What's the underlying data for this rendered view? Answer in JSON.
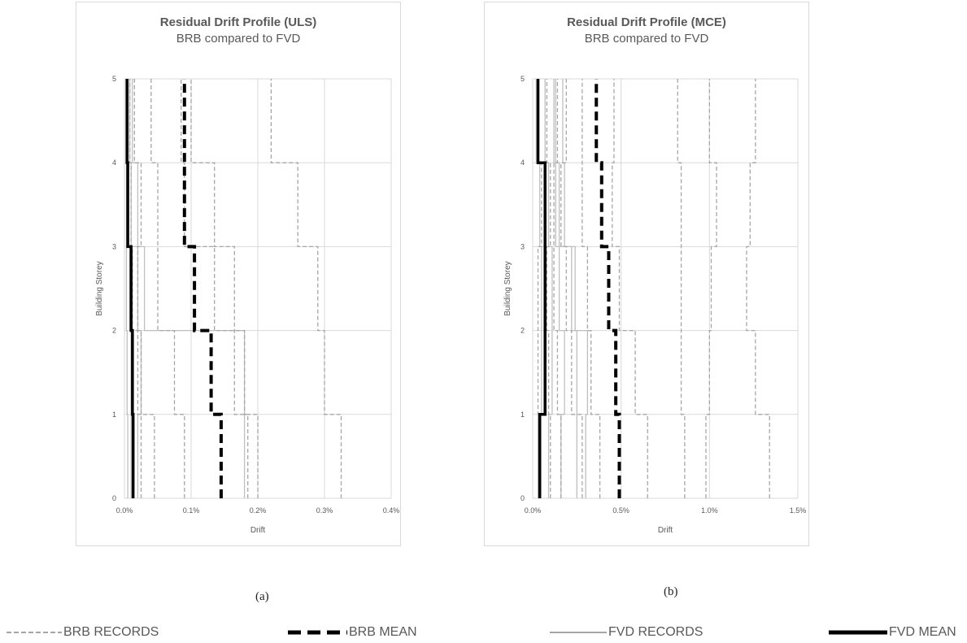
{
  "chart_data": [
    {
      "type": "line",
      "title": "Residual Drift Profile (ULS)",
      "subtitle": "BRB compared to FVD",
      "xlabel": "Drift",
      "ylabel": "Building Storey",
      "xlim": [
        0,
        0.4
      ],
      "ylim": [
        0,
        5
      ],
      "x_ticks": [
        "0.0%",
        "0.1%",
        "0.2%",
        "0.3%",
        "0.4%"
      ],
      "y_ticks": [
        "0",
        "1",
        "2",
        "3",
        "4",
        "5"
      ],
      "grid": true,
      "caption": "(a)",
      "storey_bounds": [
        0,
        1,
        2,
        3,
        4,
        5
      ],
      "series": [
        {
          "name": "BRB MEAN",
          "style": "brb-mean",
          "values": [
            0.145,
            0.13,
            0.105,
            0.09,
            0.09
          ]
        },
        {
          "name": "FVD MEAN",
          "style": "fvd-mean",
          "values": [
            0.013,
            0.012,
            0.01,
            0.005,
            0.004
          ]
        },
        {
          "name": "BRB RECORDS",
          "style": "brb-rec",
          "values": [
            0.325,
            0.3,
            0.29,
            0.26,
            0.22
          ]
        },
        {
          "name": "BRB RECORDS",
          "style": "brb-rec",
          "values": [
            0.2,
            0.165,
            0.165,
            0.135,
            0.1
          ]
        },
        {
          "name": "BRB RECORDS",
          "style": "brb-rec",
          "values": [
            0.185,
            0.18,
            0.135,
            0.09,
            0.085
          ]
        },
        {
          "name": "BRB RECORDS",
          "style": "brb-rec",
          "values": [
            0.09,
            0.075,
            0.05,
            0.05,
            0.04
          ]
        },
        {
          "name": "BRB RECORDS",
          "style": "brb-rec",
          "values": [
            0.045,
            0.025,
            0.02,
            0.025,
            0.015
          ]
        },
        {
          "name": "BRB RECORDS",
          "style": "brb-rec",
          "values": [
            0.025,
            0.02,
            0.012,
            0.01,
            0.008
          ]
        },
        {
          "name": "FVD RECORDS",
          "style": "fvd-rec",
          "values": [
            0.18,
            0.18,
            0.03,
            0.02,
            0.012
          ]
        },
        {
          "name": "FVD RECORDS",
          "style": "fvd-rec",
          "values": [
            0.02,
            0.025,
            0.02,
            0.01,
            0.008
          ]
        },
        {
          "name": "FVD RECORDS",
          "style": "fvd-rec",
          "values": [
            0.01,
            0.01,
            0.008,
            0.006,
            0.004
          ]
        },
        {
          "name": "FVD RECORDS",
          "style": "fvd-rec",
          "values": [
            0.005,
            0.004,
            0.003,
            0.003,
            0.002
          ]
        }
      ]
    },
    {
      "type": "line",
      "title": "Residual Drift Profile (MCE)",
      "subtitle": "BRB compared to FVD",
      "xlabel": "Drift",
      "ylabel": "Building Storey",
      "xlim": [
        0,
        1.5
      ],
      "ylim": [
        0,
        5
      ],
      "x_ticks": [
        "0.0%",
        "0.5%",
        "1.0%",
        "1.5%"
      ],
      "y_ticks": [
        "0",
        "1",
        "2",
        "3",
        "4",
        "5"
      ],
      "grid": true,
      "caption": "(b)",
      "storey_bounds": [
        0,
        1,
        2,
        3,
        4,
        5
      ],
      "series": [
        {
          "name": "BRB MEAN",
          "style": "brb-mean",
          "values": [
            0.49,
            0.47,
            0.43,
            0.39,
            0.36
          ]
        },
        {
          "name": "FVD MEAN",
          "style": "fvd-mean",
          "values": [
            0.04,
            0.07,
            0.07,
            0.07,
            0.03
          ]
        },
        {
          "name": "BRB RECORDS",
          "style": "brb-rec",
          "values": [
            1.34,
            1.26,
            1.21,
            1.23,
            1.26
          ]
        },
        {
          "name": "BRB RECORDS",
          "style": "brb-rec",
          "values": [
            0.98,
            1.0,
            1.01,
            1.04,
            1.0
          ]
        },
        {
          "name": "BRB RECORDS",
          "style": "brb-rec",
          "values": [
            0.86,
            0.84,
            0.84,
            0.84,
            0.82
          ]
        },
        {
          "name": "BRB RECORDS",
          "style": "brb-rec",
          "values": [
            0.65,
            0.58,
            0.49,
            0.45,
            0.46
          ]
        },
        {
          "name": "BRB RECORDS",
          "style": "brb-rec",
          "values": [
            0.38,
            0.33,
            0.31,
            0.28,
            0.28
          ]
        },
        {
          "name": "BRB RECORDS",
          "style": "brb-rec",
          "values": [
            0.28,
            0.22,
            0.19,
            0.16,
            0.19
          ]
        },
        {
          "name": "BRB RECORDS",
          "style": "brb-rec",
          "values": [
            0.16,
            0.14,
            0.12,
            0.12,
            0.14
          ]
        },
        {
          "name": "BRB RECORDS",
          "style": "brb-rec",
          "values": [
            0.1,
            0.09,
            0.08,
            0.1,
            0.08
          ]
        },
        {
          "name": "BRB RECORDS",
          "style": "brb-rec",
          "values": [
            0.04,
            0.03,
            0.03,
            0.05,
            0.03
          ]
        },
        {
          "name": "FVD RECORDS",
          "style": "fvd-rec",
          "values": [
            0.3,
            0.31,
            0.24,
            0.18,
            0.17
          ]
        },
        {
          "name": "FVD RECORDS",
          "style": "fvd-rec",
          "values": [
            0.25,
            0.25,
            0.22,
            0.15,
            0.13
          ]
        },
        {
          "name": "FVD RECORDS",
          "style": "fvd-rec",
          "values": [
            0.16,
            0.18,
            0.15,
            0.13,
            0.12
          ]
        },
        {
          "name": "FVD RECORDS",
          "style": "fvd-rec",
          "values": [
            0.09,
            0.11,
            0.11,
            0.09,
            0.07
          ]
        },
        {
          "name": "FVD RECORDS",
          "style": "fvd-rec",
          "values": [
            0.03,
            0.05,
            0.05,
            0.04,
            0.02
          ]
        }
      ]
    }
  ],
  "legend": {
    "brb_records": "BRB RECORDS",
    "brb_mean": "BRB MEAN",
    "fvd_records": "FVD RECORDS",
    "fvd_mean": "FVD MEAN"
  }
}
